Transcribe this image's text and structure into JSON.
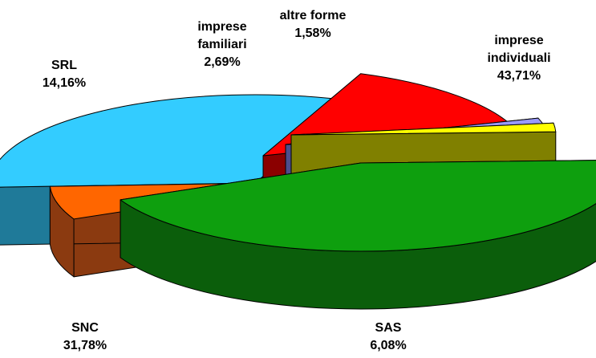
{
  "chart_data": {
    "type": "pie",
    "title": "",
    "slices": [
      {
        "name_lines": [
          "imprese",
          "individuali"
        ],
        "value": 43.71,
        "value_label": "43,71%",
        "color": "#0E9F0E",
        "side_color": "#0B5E0B"
      },
      {
        "name_lines": [
          "SAS"
        ],
        "value": 6.08,
        "value_label": "6,08%",
        "color": "#FF6600",
        "side_color": "#8B3A10"
      },
      {
        "name_lines": [
          "SNC"
        ],
        "value": 31.78,
        "value_label": "31,78%",
        "color": "#33CCFF",
        "side_color": "#1F7A99"
      },
      {
        "name_lines": [
          "SRL"
        ],
        "value": 14.16,
        "value_label": "14,16%",
        "color": "#FF0000",
        "side_color": "#8B0000"
      },
      {
        "name_lines": [
          "imprese",
          "familiari"
        ],
        "value": 2.69,
        "value_label": "2,69%",
        "color": "#9999FF",
        "side_color": "#4D4D8C"
      },
      {
        "name_lines": [
          "altre forme"
        ],
        "value": 1.58,
        "value_label": "1,58%",
        "color": "#FFFF00",
        "side_color": "#808000"
      }
    ],
    "legend": "none",
    "style": "3d-exploded"
  }
}
